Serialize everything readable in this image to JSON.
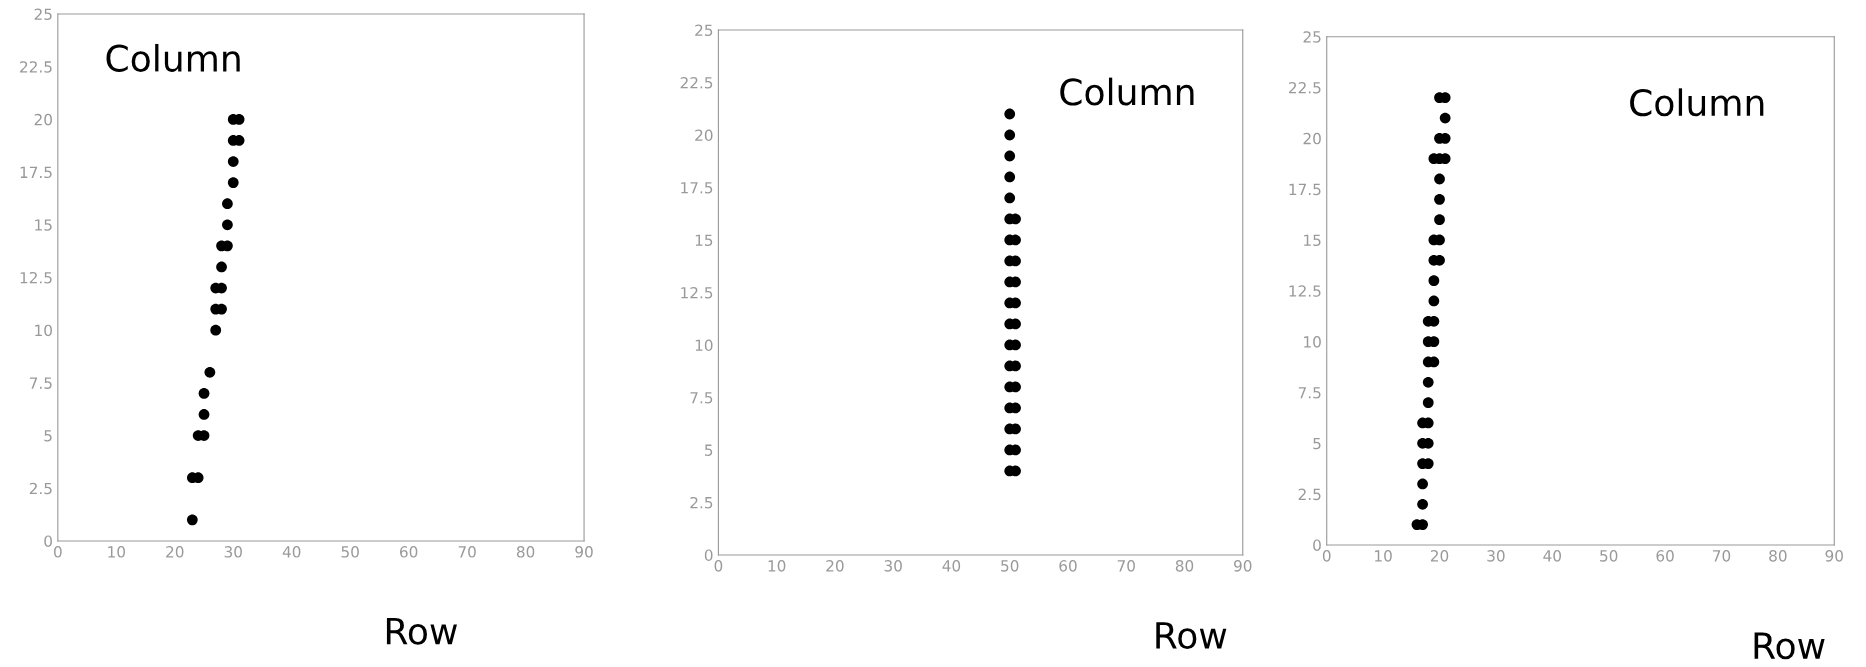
{
  "chart_data": [
    {
      "type": "scatter",
      "xlabel": "Row",
      "ylabel": "Column",
      "xlim": [
        0,
        90
      ],
      "ylim": [
        0,
        25
      ],
      "xticks": [
        0,
        10,
        20,
        30,
        40,
        50,
        60,
        70,
        80,
        90
      ],
      "yticks": [
        0,
        2.5,
        5,
        7.5,
        10,
        12.5,
        15,
        17.5,
        20,
        22.5,
        25
      ],
      "grid": false,
      "legend": false,
      "marker": "circle",
      "series": [
        {
          "color": "#000000",
          "x": [
            23,
            23,
            24,
            24,
            25,
            25,
            25,
            26,
            27,
            27,
            28,
            27,
            28,
            28,
            28,
            29,
            29,
            29,
            30,
            30,
            30,
            31,
            30,
            31
          ],
          "values": [
            1,
            3,
            3,
            5,
            5,
            6,
            7,
            8,
            10,
            11,
            11,
            12,
            12,
            13,
            14,
            14,
            15,
            16,
            17,
            18,
            19,
            19,
            20,
            20
          ]
        }
      ]
    },
    {
      "type": "scatter",
      "xlabel": "Row",
      "ylabel": "Column",
      "xlim": [
        0,
        90
      ],
      "ylim": [
        0,
        25
      ],
      "xticks": [
        0,
        10,
        20,
        30,
        40,
        50,
        60,
        70,
        80,
        90
      ],
      "yticks": [
        0,
        2.5,
        5,
        7.5,
        10,
        12.5,
        15,
        17.5,
        20,
        22.5,
        25
      ],
      "grid": false,
      "legend": false,
      "marker": "circle",
      "series": [
        {
          "color": "#000000",
          "x": [
            50,
            50,
            50,
            50,
            50,
            50,
            51,
            50,
            51,
            50,
            51,
            50,
            51,
            50,
            51,
            50,
            51,
            50,
            51,
            50,
            51,
            50,
            51,
            50,
            51,
            50,
            51,
            50,
            51,
            50,
            51
          ],
          "values": [
            21,
            20,
            19,
            18,
            17,
            16,
            16,
            15,
            15,
            14,
            14,
            13,
            13,
            12,
            12,
            11,
            11,
            10,
            10,
            9,
            9,
            8,
            8,
            7,
            7,
            6,
            6,
            5,
            5,
            4,
            4
          ]
        }
      ]
    },
    {
      "type": "scatter",
      "xlabel": "Row",
      "ylabel": "Column",
      "xlim": [
        0,
        90
      ],
      "ylim": [
        0,
        25
      ],
      "xticks": [
        0,
        10,
        20,
        30,
        40,
        50,
        60,
        70,
        80,
        90
      ],
      "yticks": [
        0,
        2.5,
        5,
        7.5,
        10,
        12.5,
        15,
        17.5,
        20,
        22.5,
        25
      ],
      "grid": false,
      "legend": false,
      "marker": "circle",
      "series": [
        {
          "color": "#000000",
          "x": [
            20,
            21,
            21,
            20,
            21,
            19,
            20,
            21,
            20,
            20,
            20,
            19,
            20,
            19,
            20,
            19,
            19,
            18,
            19,
            18,
            19,
            18,
            19,
            18,
            18,
            17,
            18,
            17,
            18,
            17,
            18,
            17,
            17,
            16,
            17
          ],
          "values": [
            22,
            22,
            21,
            20,
            20,
            19,
            19,
            19,
            18,
            17,
            16,
            15,
            15,
            14,
            14,
            13,
            12,
            11,
            11,
            10,
            10,
            9,
            9,
            8,
            7,
            6,
            6,
            5,
            5,
            4,
            4,
            3,
            2,
            1,
            1
          ]
        }
      ]
    }
  ]
}
